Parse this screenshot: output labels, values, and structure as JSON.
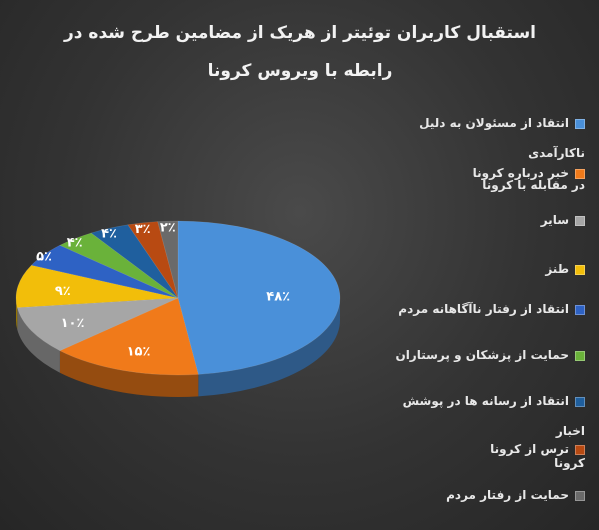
{
  "title": {
    "line1": "استقبال کاربران توئیتر از هریک از مضامین طرح شده در",
    "line2": "رابطه با ویروس کرونا"
  },
  "chart_data": {
    "type": "pie",
    "title": "استقبال کاربران توئیتر از هریک از مضامین طرح شده در رابطه با ویروس کرونا",
    "legend_position": "right",
    "categories": [
      "انتقاد از مسئولان به دلیل ناکارآمدی در مقابله با کرونا",
      "خبر درباره کرونا",
      "سایر",
      "طنز",
      "انتقاد از رفتار ناآگاهانه مردم",
      "حمایت از پزشکان و پرستاران",
      "انتقاد از رسانه ها در پوشش اخبار کرونا",
      "ترس از کرونا",
      "حمایت از رفتار مردم"
    ],
    "values": [
      48,
      15,
      10,
      9,
      5,
      4,
      4,
      3,
      2
    ],
    "data_labels": [
      "۴۸٪",
      "۱۵٪",
      "۱۰٪",
      "۹٪",
      "۵٪",
      "۴٪",
      "۴٪",
      "۳٪",
      "۲٪"
    ],
    "colors": [
      "#4a90d9",
      "#f07a1a",
      "#a6a6a6",
      "#f2be0a",
      "#2e62c4",
      "#6ab23a",
      "#1f5f9e",
      "#b84a12",
      "#6a6a6a"
    ]
  },
  "legend": {
    "items": [
      {
        "line1": "انتقاد از مسئولان  به دلیل ناکارآمدی",
        "line2": "در مقابله با کرونا"
      },
      {
        "line1": "خبر درباره کرونا",
        "line2": ""
      },
      {
        "line1": "سایر",
        "line2": ""
      },
      {
        "line1": "طنز",
        "line2": ""
      },
      {
        "line1": "انتقاد از رفتار ناآگاهانه مردم",
        "line2": ""
      },
      {
        "line1": "حمایت از پزشکان و پرستاران",
        "line2": ""
      },
      {
        "line1": "انتقاد از رسانه ها در پوشش اخبار",
        "line2": "کرونا"
      },
      {
        "line1": "ترس از کرونا",
        "line2": ""
      },
      {
        "line1": "حمایت از رفتار مردم",
        "line2": ""
      }
    ]
  }
}
